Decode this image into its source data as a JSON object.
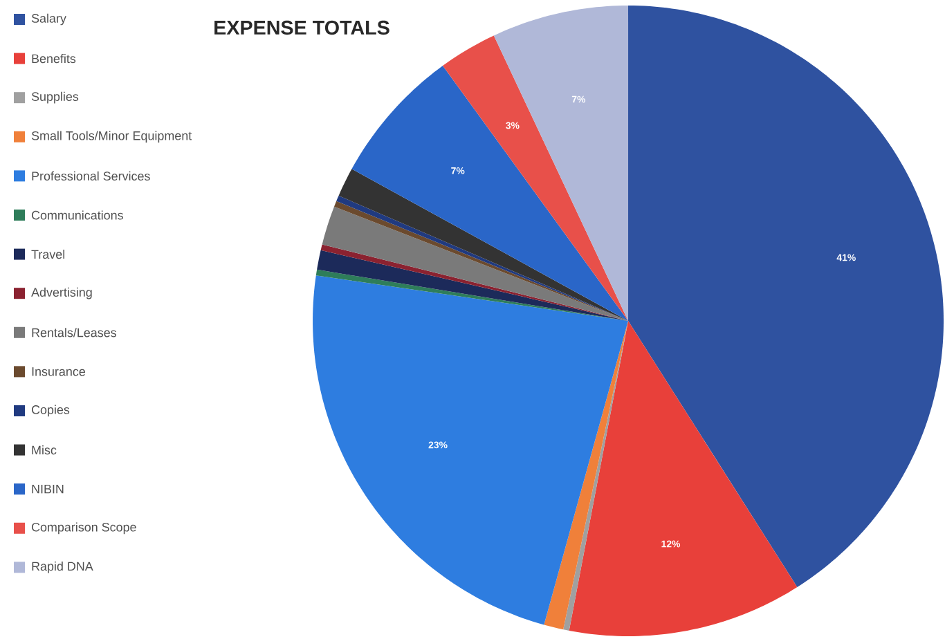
{
  "chart_data": {
    "type": "pie",
    "title": "EXPENSE TOTALS",
    "categories": [
      "Salary",
      "Benefits",
      "Supplies",
      "Small Tools/Minor Equipment",
      "Professional Services",
      "Communications",
      "Travel",
      "Advertising",
      "Rentals/Leases",
      "Insurance",
      "Copies",
      "Misc",
      "NIBIN",
      "Comparison Scope",
      "Rapid DNA"
    ],
    "values": [
      41,
      12,
      0.3,
      1,
      23,
      0.3,
      1,
      0.3,
      2,
      0.3,
      0.3,
      1.5,
      7,
      3,
      7
    ],
    "value_labels": [
      "41%",
      "12%",
      null,
      null,
      "23%",
      null,
      null,
      null,
      null,
      null,
      null,
      null,
      "7%",
      "3%",
      "7%"
    ],
    "colors": [
      "#2f52a0",
      "#e8403a",
      "#a0a0a0",
      "#f0803a",
      "#2e7de0",
      "#2e7d5a",
      "#1c2a5a",
      "#8b2230",
      "#7a7a7a",
      "#6b4a2e",
      "#203a80",
      "#333333",
      "#2a66c8",
      "#e8504a",
      "#b0b8d8"
    ],
    "legend": "left"
  }
}
